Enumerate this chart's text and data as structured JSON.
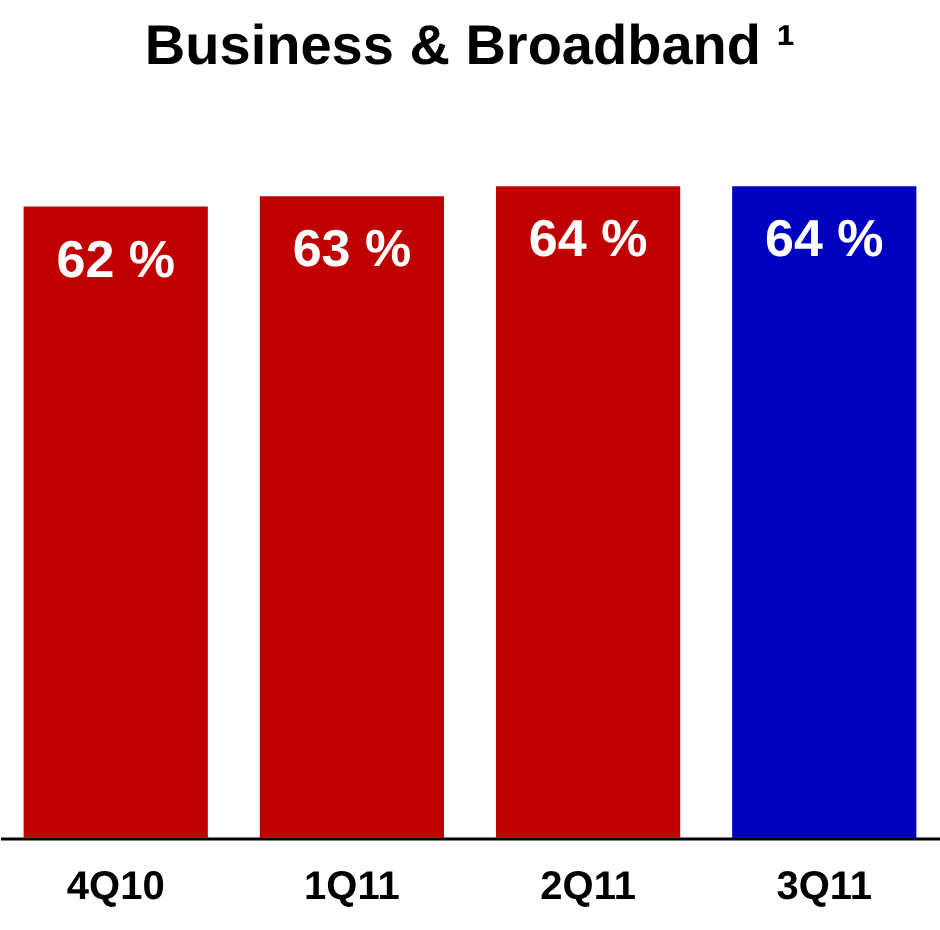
{
  "chart_data": {
    "type": "bar",
    "title": "Business & Broadband ¹",
    "categories": [
      "4Q10",
      "1Q11",
      "2Q11",
      "3Q11"
    ],
    "values": [
      62,
      63,
      64,
      64
    ],
    "value_labels": [
      "62 %",
      "63 %",
      "64 %",
      "64 %"
    ],
    "colors": [
      "#c00000",
      "#c00000",
      "#c00000",
      "#0000c0"
    ]
  }
}
